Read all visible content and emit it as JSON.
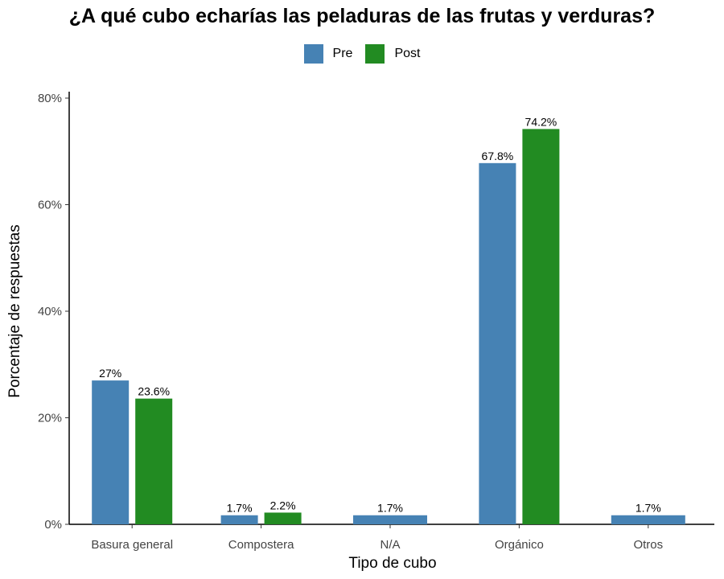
{
  "chart_data": {
    "type": "bar",
    "title": "¿A qué cubo echarías las peladuras de las frutas y verduras?",
    "xlabel": "Tipo de cubo",
    "ylabel": "Porcentaje de respuestas",
    "categories": [
      "Basura general",
      "Compostera",
      "N/A",
      "Orgánico",
      "Otros"
    ],
    "series": [
      {
        "name": "Pre",
        "color": "#4682B4",
        "values": [
          27,
          1.7,
          1.7,
          67.8,
          1.7
        ],
        "labels": [
          "27%",
          "1.7%",
          "1.7%",
          "67.8%",
          "1.7%"
        ]
      },
      {
        "name": "Post",
        "color": "#228B22",
        "values": [
          23.6,
          2.2,
          null,
          74.2,
          null
        ],
        "labels": [
          "23.6%",
          "2.2%",
          null,
          "74.2%",
          null
        ]
      }
    ],
    "ylim": [
      0,
      80
    ],
    "yticks": [
      0,
      20,
      40,
      60,
      80
    ],
    "ytick_labels": [
      "0%",
      "20%",
      "40%",
      "60%",
      "80%"
    ],
    "grid": false,
    "legend_position": "top"
  }
}
